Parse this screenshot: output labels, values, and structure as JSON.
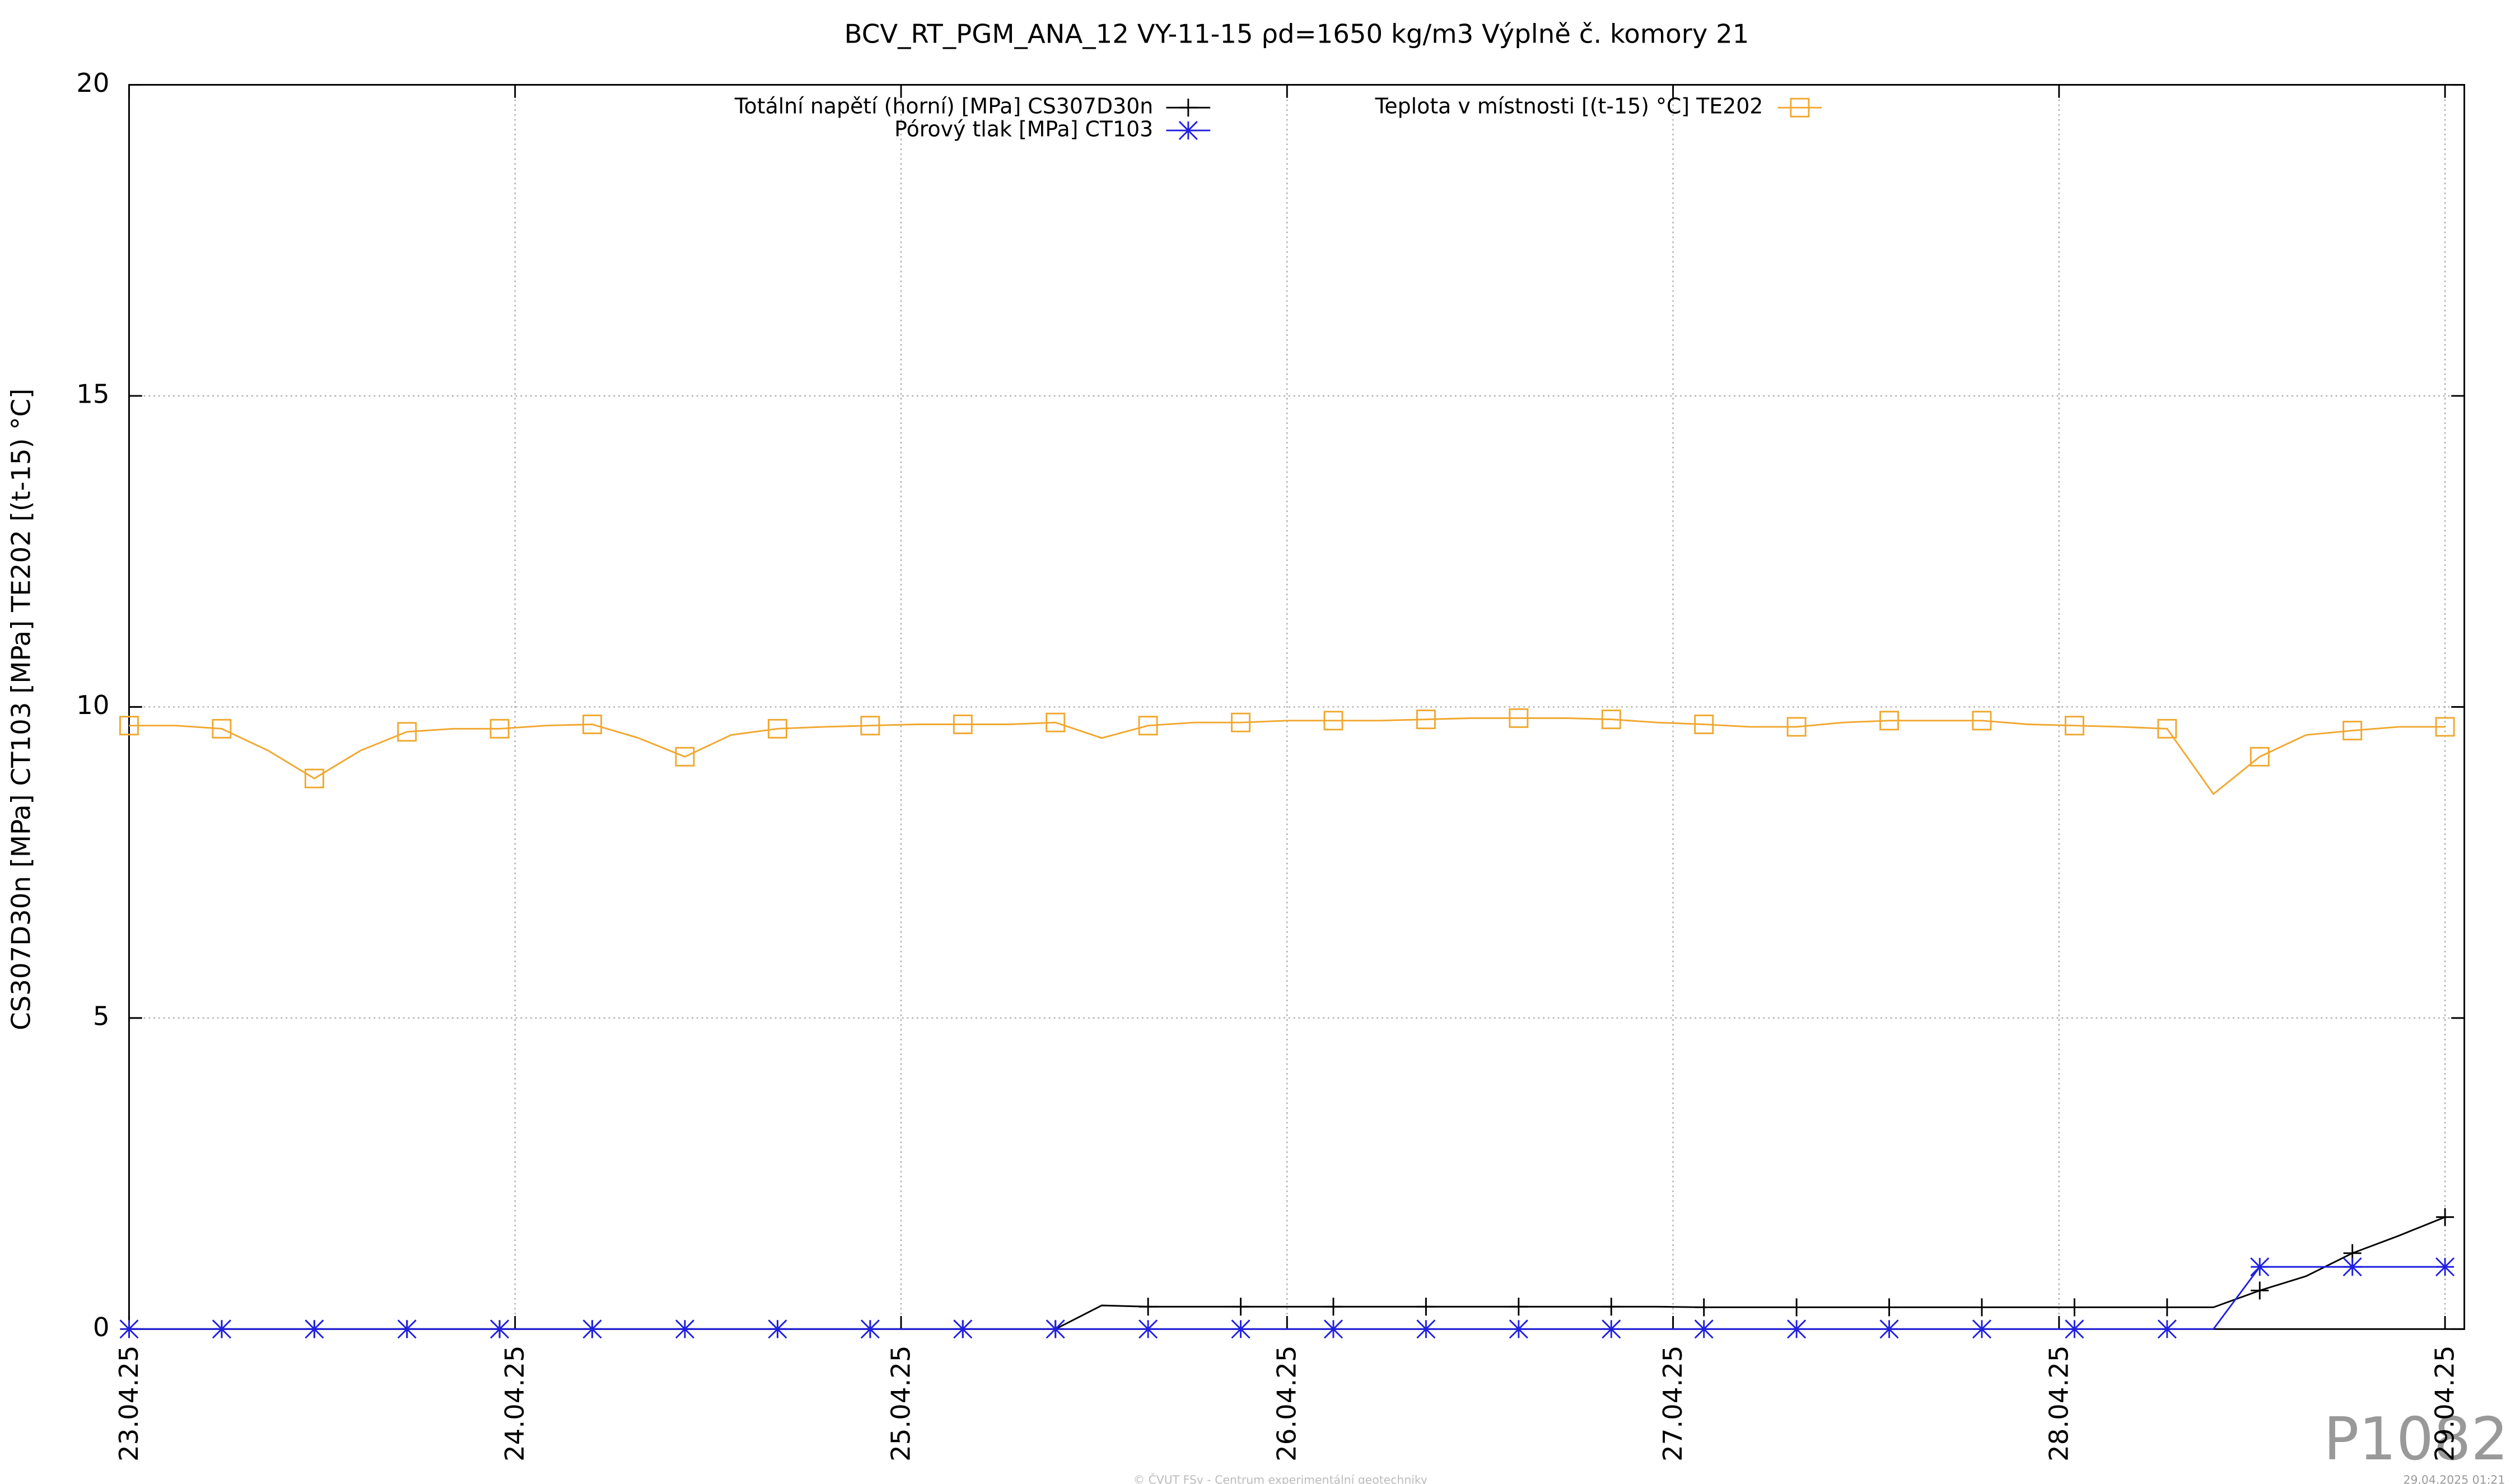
{
  "chart_data": {
    "type": "line",
    "title": "BCV_RT_PGM_ANA_12 VY-11-15 ρd=1650 kg/m3 Výplně č. komory 21",
    "y_label": "CS307D30n [MPa] CT103 [MPa] TE202 [(t-15) °C]",
    "x": [
      0,
      0.12,
      0.24,
      0.36,
      0.48,
      0.6,
      0.72,
      0.84,
      0.96,
      1.08,
      1.2,
      1.32,
      1.44,
      1.56,
      1.68,
      1.8,
      1.92,
      2.04,
      2.16,
      2.28,
      2.4,
      2.52,
      2.64,
      2.76,
      2.88,
      3.0,
      3.12,
      3.24,
      3.36,
      3.48,
      3.6,
      3.72,
      3.84,
      3.96,
      4.08,
      4.2,
      4.32,
      4.44,
      4.56,
      4.68,
      4.8,
      4.92,
      5.04,
      5.16,
      5.28,
      5.4,
      5.52,
      5.64,
      5.76,
      5.88,
      6.0
    ],
    "series": [
      {
        "name": "Totální napětí (horní) [MPa] CS307D30n",
        "color": "#000000",
        "marker": "plus",
        "values": [
          0,
          0,
          0,
          0,
          0,
          0,
          0,
          0,
          0,
          0,
          0,
          0,
          0,
          0,
          0,
          0,
          0,
          0,
          0,
          0,
          0,
          0.38,
          0.36,
          0.36,
          0.36,
          0.36,
          0.36,
          0.36,
          0.36,
          0.36,
          0.36,
          0.36,
          0.36,
          0.36,
          0.35,
          0.35,
          0.35,
          0.35,
          0.35,
          0.35,
          0.35,
          0.35,
          0.35,
          0.35,
          0.35,
          0.35,
          0.62,
          0.85,
          1.22,
          1.5,
          1.8
        ]
      },
      {
        "name": "Pórový tlak [MPa] CT103",
        "color": "#2020e0",
        "marker": "star",
        "values": [
          0,
          0,
          0,
          0,
          0,
          0,
          0,
          0,
          0,
          0,
          0,
          0,
          0,
          0,
          0,
          0,
          0,
          0,
          0,
          0,
          0,
          0,
          0,
          0,
          0,
          0,
          0,
          0,
          0,
          0,
          0,
          0,
          0,
          0,
          0,
          0,
          0,
          0,
          0,
          0,
          0,
          0,
          0,
          0,
          0,
          0,
          1.0,
          1.0,
          1.0,
          1.0,
          1.0
        ]
      },
      {
        "name": "Teplota v místnosti [(t-15) °C] TE202",
        "color": "#f0a830",
        "marker": "square",
        "values": [
          9.7,
          9.7,
          9.65,
          9.3,
          8.85,
          9.3,
          9.6,
          9.65,
          9.65,
          9.7,
          9.72,
          9.5,
          9.2,
          9.55,
          9.65,
          9.68,
          9.7,
          9.72,
          9.72,
          9.72,
          9.75,
          9.5,
          9.7,
          9.75,
          9.75,
          9.78,
          9.78,
          9.78,
          9.8,
          9.82,
          9.82,
          9.82,
          9.8,
          9.75,
          9.72,
          9.68,
          9.68,
          9.75,
          9.78,
          9.78,
          9.78,
          9.72,
          9.7,
          9.68,
          9.65,
          8.6,
          9.2,
          9.55,
          9.62,
          9.68,
          9.68
        ]
      }
    ],
    "xlim": [
      0,
      6.05
    ],
    "xticks": [
      {
        "value": 0,
        "label": "23.04.25"
      },
      {
        "value": 1,
        "label": "24.04.25"
      },
      {
        "value": 2,
        "label": "25.04.25"
      },
      {
        "value": 3,
        "label": "26.04.25"
      },
      {
        "value": 4,
        "label": "27.04.25"
      },
      {
        "value": 5,
        "label": "28.04.25"
      },
      {
        "value": 6,
        "label": "29.04.25"
      }
    ],
    "ylim": [
      0,
      20
    ],
    "yticks": [
      0,
      5,
      10,
      15,
      20
    ],
    "grid": true,
    "legend": "top",
    "footer": "© ČVUT FSv - Centrum experimentální geotechniky",
    "timestamp": "29.04.2025 01:21",
    "watermark": "P1082"
  }
}
